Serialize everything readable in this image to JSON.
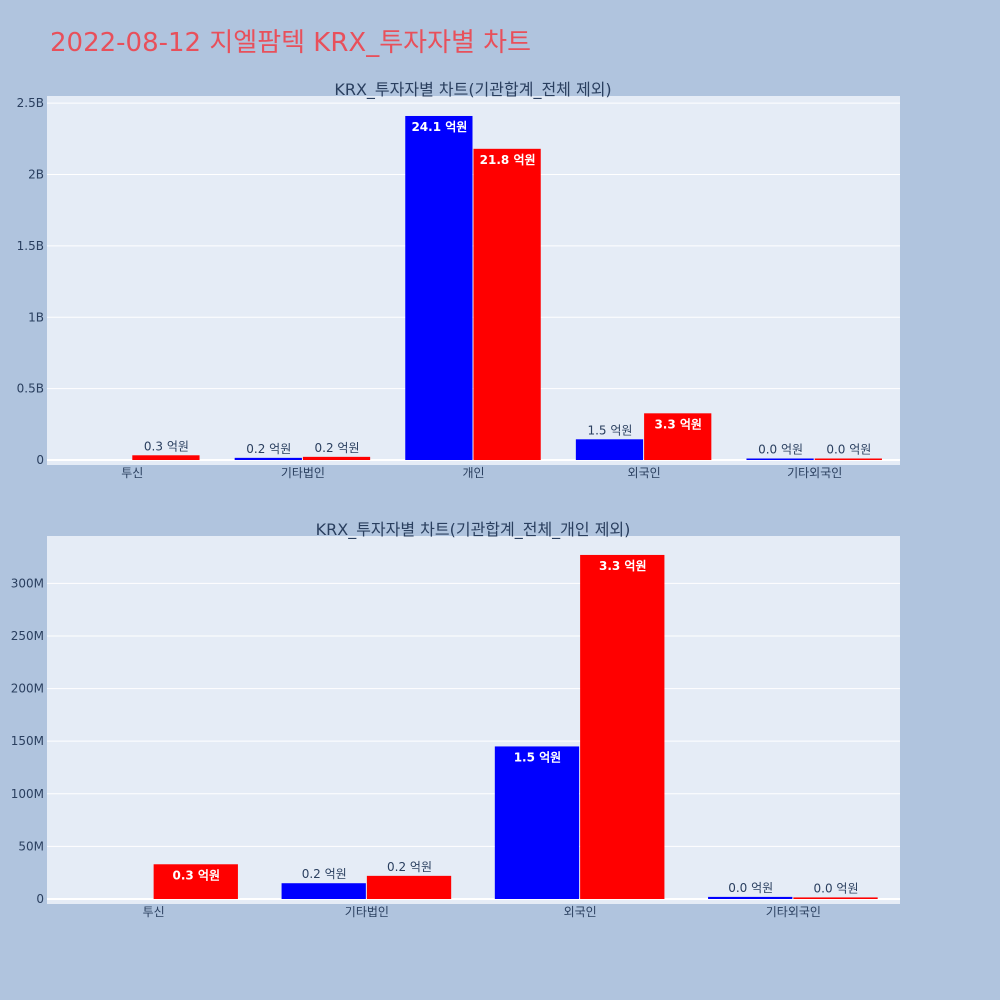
{
  "page_title": "2022-08-12 지엘팜텍 KRX_투자자별 차트",
  "colors": {
    "buy": "#0000ff",
    "sell": "#ff0000",
    "plot_bg": "#e5ecf6",
    "page_bg": "#b0c4de",
    "title": "#e8505b"
  },
  "chart_data": [
    {
      "type": "bar",
      "title": "KRX_투자자별 차트(기관합계_전체 제외)",
      "categories": [
        "투신",
        "기타법인",
        "개인",
        "외국인",
        "기타외국인"
      ],
      "series": [
        {
          "values": [
            0,
            15000000,
            2410000000,
            145000000,
            2000000
          ],
          "labels": [
            "",
            "0.2 억원",
            "24.1 억원",
            "1.5 억원",
            "0.0 억원"
          ]
        },
        {
          "values": [
            33000000,
            22000000,
            2180000000,
            327000000,
            1500000
          ],
          "labels": [
            "0.3 억원",
            "0.2 억원",
            "21.8 억원",
            "3.3 억원",
            "0.0 억원"
          ]
        }
      ],
      "ylim": [
        0,
        2550000000
      ],
      "yticks": [
        0,
        500000000,
        1000000000,
        1500000000,
        2000000000,
        2500000000
      ],
      "ytick_labels": [
        "0",
        "0.5B",
        "1B",
        "1.5B",
        "2B",
        "2.5B"
      ],
      "grid": true
    },
    {
      "type": "bar",
      "title": "KRX_투자자별 차트(기관합계_전체_개인 제외)",
      "categories": [
        "투신",
        "기타법인",
        "외국인",
        "기타외국인"
      ],
      "series": [
        {
          "values": [
            0,
            15000000,
            145000000,
            2000000
          ],
          "labels": [
            "",
            "0.2 억원",
            "1.5 억원",
            "0.0 억원"
          ]
        },
        {
          "values": [
            33000000,
            22000000,
            327000000,
            1500000
          ],
          "labels": [
            "0.3 억원",
            "0.2 억원",
            "3.3 억원",
            "0.0 억원"
          ]
        }
      ],
      "ylim": [
        0,
        345000000
      ],
      "yticks": [
        0,
        50000000,
        100000000,
        150000000,
        200000000,
        250000000,
        300000000
      ],
      "ytick_labels": [
        "0",
        "50M",
        "100M",
        "150M",
        "200M",
        "250M",
        "300M"
      ],
      "grid": true
    }
  ]
}
